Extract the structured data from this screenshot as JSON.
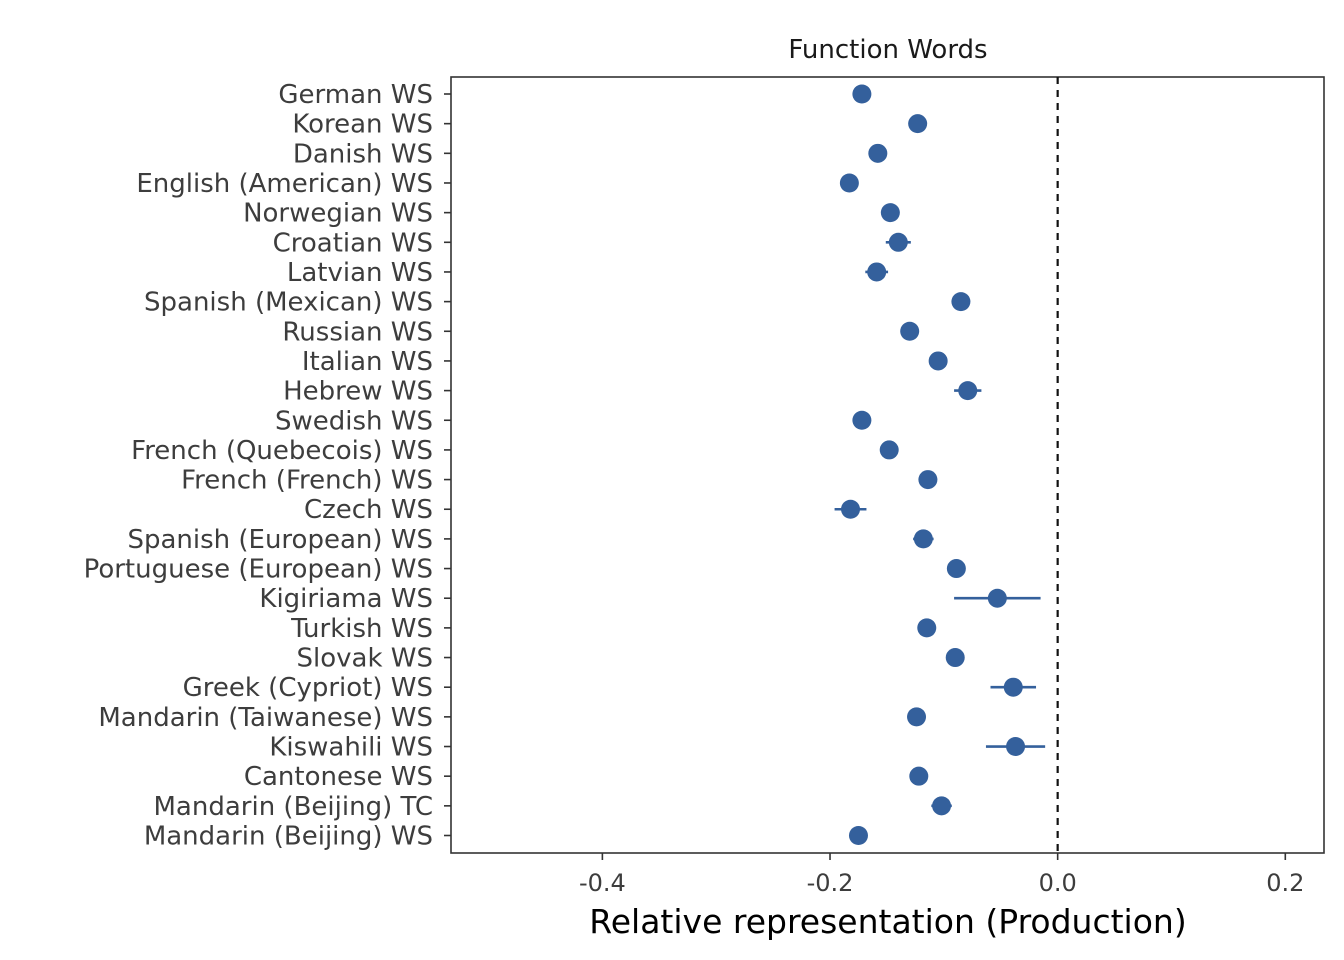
{
  "chart_data": {
    "type": "scatter",
    "title": "Function Words",
    "xlabel": "Relative representation (Production)",
    "ylabel": "",
    "xlim": [
      -0.533,
      0.234
    ],
    "xticks": [
      -0.4,
      -0.2,
      0.0,
      0.2
    ],
    "xtick_labels": [
      "-0.4",
      "-0.2",
      "0.0",
      "0.2"
    ],
    "reference_line": {
      "x": 0,
      "style": "dashed"
    },
    "grid": false,
    "point_color": "#34609C",
    "categories": [
      "German WS",
      "Korean WS",
      "Danish WS",
      "English (American) WS",
      "Norwegian WS",
      "Croatian WS",
      "Latvian WS",
      "Spanish (Mexican) WS",
      "Russian WS",
      "Italian WS",
      "Hebrew WS",
      "Swedish WS",
      "French (Quebecois) WS",
      "French (French) WS",
      "Czech WS",
      "Spanish (European) WS",
      "Portuguese (European) WS",
      "Kigiriama WS",
      "Turkish WS",
      "Slovak WS",
      "Greek (Cypriot) WS",
      "Mandarin (Taiwanese) WS",
      "Kiswahili WS",
      "Cantonese WS",
      "Mandarin (Beijing) TC",
      "Mandarin (Beijing) WS"
    ],
    "values": [
      -0.172,
      -0.123,
      -0.158,
      -0.183,
      -0.147,
      -0.14,
      -0.159,
      -0.085,
      -0.13,
      -0.105,
      -0.079,
      -0.172,
      -0.148,
      -0.114,
      -0.182,
      -0.118,
      -0.089,
      -0.053,
      -0.115,
      -0.09,
      -0.039,
      -0.124,
      -0.037,
      -0.122,
      -0.102,
      -0.175
    ],
    "ci_low": [
      -0.178,
      -0.128,
      -0.163,
      -0.189,
      -0.152,
      -0.151,
      -0.169,
      -0.091,
      -0.135,
      -0.111,
      -0.091,
      -0.177,
      -0.153,
      -0.119,
      -0.196,
      -0.127,
      -0.094,
      -0.091,
      -0.12,
      -0.095,
      -0.059,
      -0.129,
      -0.063,
      -0.127,
      -0.111,
      -0.18
    ],
    "ci_high": [
      -0.166,
      -0.118,
      -0.153,
      -0.177,
      -0.142,
      -0.129,
      -0.149,
      -0.079,
      -0.125,
      -0.099,
      -0.067,
      -0.167,
      -0.143,
      -0.109,
      -0.168,
      -0.109,
      -0.084,
      -0.015,
      -0.11,
      -0.085,
      -0.019,
      -0.119,
      -0.011,
      -0.117,
      -0.093,
      -0.17
    ]
  }
}
